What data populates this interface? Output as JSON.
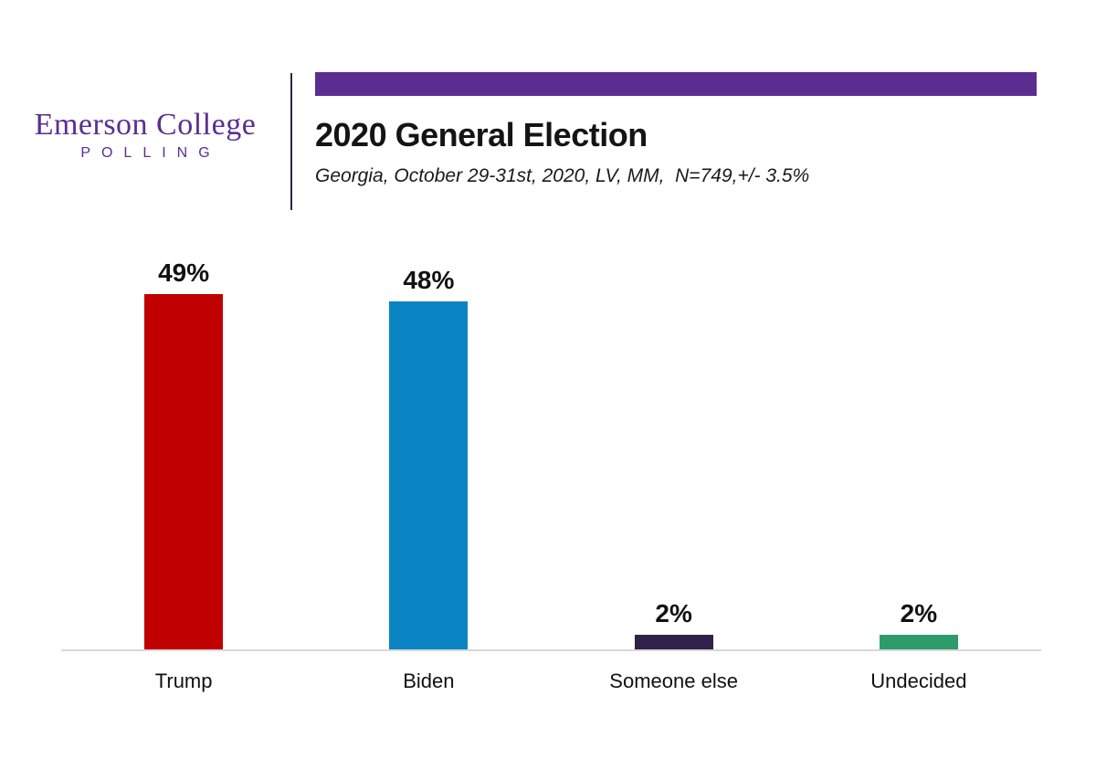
{
  "logo": {
    "name": "Emerson College",
    "subname": "POLLING"
  },
  "colors": {
    "accent_banner": "#5c2d91",
    "logo_purple": "#5b2e91",
    "header_divider": "#23294a",
    "baseline_gray": "#d9d9d9"
  },
  "chart_data": {
    "type": "bar",
    "title": "2020 General Election",
    "subtitle": "Georgia, October 29-31st, 2020, LV, MM,  N=749,+/- 3.5%",
    "categories": [
      "Trump",
      "Biden",
      "Someone else",
      "Undecided"
    ],
    "values": [
      49,
      48,
      2,
      2
    ],
    "value_labels": [
      "49%",
      "48%",
      "2%",
      "2%"
    ],
    "series_colors": [
      "#c00000",
      "#0b84c4",
      "#31204a",
      "#2e9c6a"
    ],
    "ylim": [
      0,
      49
    ],
    "grid": false,
    "legend": "none",
    "xlabel": "",
    "ylabel": ""
  }
}
